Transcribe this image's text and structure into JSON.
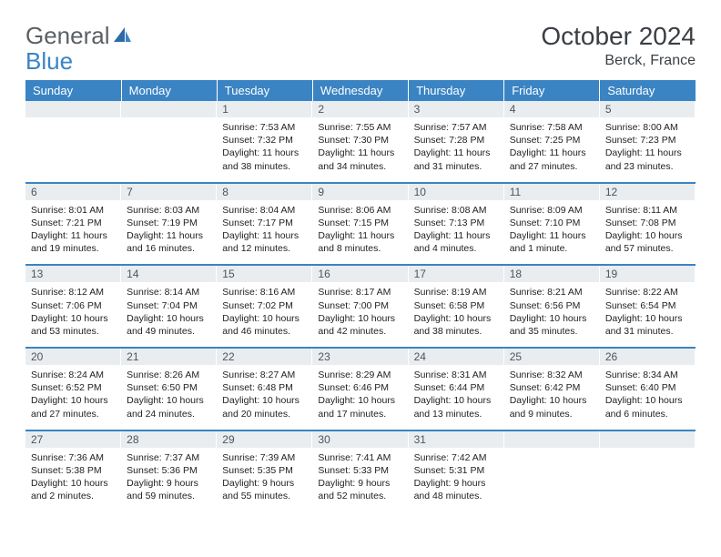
{
  "logo": {
    "text1": "General",
    "text2": "Blue"
  },
  "title": "October 2024",
  "location": "Berck, France",
  "colors": {
    "header_bg": "#3a84c4",
    "header_fg": "#ffffff",
    "daynum_bg": "#e9edf0",
    "text": "#222222",
    "rule": "#3a84c4"
  },
  "day_names": [
    "Sunday",
    "Monday",
    "Tuesday",
    "Wednesday",
    "Thursday",
    "Friday",
    "Saturday"
  ],
  "weeks": [
    [
      {
        "n": "",
        "lines": []
      },
      {
        "n": "",
        "lines": []
      },
      {
        "n": "1",
        "lines": [
          "Sunrise: 7:53 AM",
          "Sunset: 7:32 PM",
          "Daylight: 11 hours",
          "and 38 minutes."
        ]
      },
      {
        "n": "2",
        "lines": [
          "Sunrise: 7:55 AM",
          "Sunset: 7:30 PM",
          "Daylight: 11 hours",
          "and 34 minutes."
        ]
      },
      {
        "n": "3",
        "lines": [
          "Sunrise: 7:57 AM",
          "Sunset: 7:28 PM",
          "Daylight: 11 hours",
          "and 31 minutes."
        ]
      },
      {
        "n": "4",
        "lines": [
          "Sunrise: 7:58 AM",
          "Sunset: 7:25 PM",
          "Daylight: 11 hours",
          "and 27 minutes."
        ]
      },
      {
        "n": "5",
        "lines": [
          "Sunrise: 8:00 AM",
          "Sunset: 7:23 PM",
          "Daylight: 11 hours",
          "and 23 minutes."
        ]
      }
    ],
    [
      {
        "n": "6",
        "lines": [
          "Sunrise: 8:01 AM",
          "Sunset: 7:21 PM",
          "Daylight: 11 hours",
          "and 19 minutes."
        ]
      },
      {
        "n": "7",
        "lines": [
          "Sunrise: 8:03 AM",
          "Sunset: 7:19 PM",
          "Daylight: 11 hours",
          "and 16 minutes."
        ]
      },
      {
        "n": "8",
        "lines": [
          "Sunrise: 8:04 AM",
          "Sunset: 7:17 PM",
          "Daylight: 11 hours",
          "and 12 minutes."
        ]
      },
      {
        "n": "9",
        "lines": [
          "Sunrise: 8:06 AM",
          "Sunset: 7:15 PM",
          "Daylight: 11 hours",
          "and 8 minutes."
        ]
      },
      {
        "n": "10",
        "lines": [
          "Sunrise: 8:08 AM",
          "Sunset: 7:13 PM",
          "Daylight: 11 hours",
          "and 4 minutes."
        ]
      },
      {
        "n": "11",
        "lines": [
          "Sunrise: 8:09 AM",
          "Sunset: 7:10 PM",
          "Daylight: 11 hours",
          "and 1 minute."
        ]
      },
      {
        "n": "12",
        "lines": [
          "Sunrise: 8:11 AM",
          "Sunset: 7:08 PM",
          "Daylight: 10 hours",
          "and 57 minutes."
        ]
      }
    ],
    [
      {
        "n": "13",
        "lines": [
          "Sunrise: 8:12 AM",
          "Sunset: 7:06 PM",
          "Daylight: 10 hours",
          "and 53 minutes."
        ]
      },
      {
        "n": "14",
        "lines": [
          "Sunrise: 8:14 AM",
          "Sunset: 7:04 PM",
          "Daylight: 10 hours",
          "and 49 minutes."
        ]
      },
      {
        "n": "15",
        "lines": [
          "Sunrise: 8:16 AM",
          "Sunset: 7:02 PM",
          "Daylight: 10 hours",
          "and 46 minutes."
        ]
      },
      {
        "n": "16",
        "lines": [
          "Sunrise: 8:17 AM",
          "Sunset: 7:00 PM",
          "Daylight: 10 hours",
          "and 42 minutes."
        ]
      },
      {
        "n": "17",
        "lines": [
          "Sunrise: 8:19 AM",
          "Sunset: 6:58 PM",
          "Daylight: 10 hours",
          "and 38 minutes."
        ]
      },
      {
        "n": "18",
        "lines": [
          "Sunrise: 8:21 AM",
          "Sunset: 6:56 PM",
          "Daylight: 10 hours",
          "and 35 minutes."
        ]
      },
      {
        "n": "19",
        "lines": [
          "Sunrise: 8:22 AM",
          "Sunset: 6:54 PM",
          "Daylight: 10 hours",
          "and 31 minutes."
        ]
      }
    ],
    [
      {
        "n": "20",
        "lines": [
          "Sunrise: 8:24 AM",
          "Sunset: 6:52 PM",
          "Daylight: 10 hours",
          "and 27 minutes."
        ]
      },
      {
        "n": "21",
        "lines": [
          "Sunrise: 8:26 AM",
          "Sunset: 6:50 PM",
          "Daylight: 10 hours",
          "and 24 minutes."
        ]
      },
      {
        "n": "22",
        "lines": [
          "Sunrise: 8:27 AM",
          "Sunset: 6:48 PM",
          "Daylight: 10 hours",
          "and 20 minutes."
        ]
      },
      {
        "n": "23",
        "lines": [
          "Sunrise: 8:29 AM",
          "Sunset: 6:46 PM",
          "Daylight: 10 hours",
          "and 17 minutes."
        ]
      },
      {
        "n": "24",
        "lines": [
          "Sunrise: 8:31 AM",
          "Sunset: 6:44 PM",
          "Daylight: 10 hours",
          "and 13 minutes."
        ]
      },
      {
        "n": "25",
        "lines": [
          "Sunrise: 8:32 AM",
          "Sunset: 6:42 PM",
          "Daylight: 10 hours",
          "and 9 minutes."
        ]
      },
      {
        "n": "26",
        "lines": [
          "Sunrise: 8:34 AM",
          "Sunset: 6:40 PM",
          "Daylight: 10 hours",
          "and 6 minutes."
        ]
      }
    ],
    [
      {
        "n": "27",
        "lines": [
          "Sunrise: 7:36 AM",
          "Sunset: 5:38 PM",
          "Daylight: 10 hours",
          "and 2 minutes."
        ]
      },
      {
        "n": "28",
        "lines": [
          "Sunrise: 7:37 AM",
          "Sunset: 5:36 PM",
          "Daylight: 9 hours",
          "and 59 minutes."
        ]
      },
      {
        "n": "29",
        "lines": [
          "Sunrise: 7:39 AM",
          "Sunset: 5:35 PM",
          "Daylight: 9 hours",
          "and 55 minutes."
        ]
      },
      {
        "n": "30",
        "lines": [
          "Sunrise: 7:41 AM",
          "Sunset: 5:33 PM",
          "Daylight: 9 hours",
          "and 52 minutes."
        ]
      },
      {
        "n": "31",
        "lines": [
          "Sunrise: 7:42 AM",
          "Sunset: 5:31 PM",
          "Daylight: 9 hours",
          "and 48 minutes."
        ]
      },
      {
        "n": "",
        "lines": []
      },
      {
        "n": "",
        "lines": []
      }
    ]
  ]
}
